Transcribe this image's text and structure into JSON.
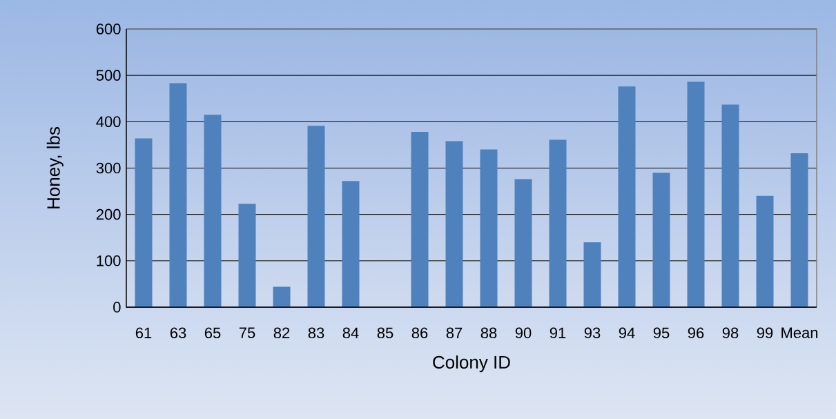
{
  "chart_data": {
    "type": "bar",
    "xlabel": "Colony ID",
    "ylabel": "Honey, lbs",
    "categories": [
      "61",
      "63",
      "65",
      "75",
      "82",
      "83",
      "84",
      "85",
      "86",
      "87",
      "88",
      "90",
      "91",
      "93",
      "94",
      "95",
      "96",
      "98",
      "99",
      "Mean"
    ],
    "values": [
      364,
      483,
      415,
      223,
      44,
      391,
      272,
      0,
      378,
      358,
      340,
      276,
      361,
      140,
      476,
      290,
      486,
      437,
      240,
      332
    ],
    "color": "#4f81bd",
    "ylim": [
      0,
      600
    ],
    "yticks": [
      0,
      100,
      200,
      300,
      400,
      500,
      600
    ],
    "grid": "y"
  }
}
